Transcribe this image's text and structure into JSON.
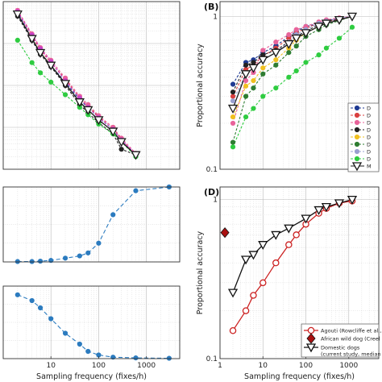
{
  "chart_data": [
    {
      "id": "A",
      "panel_label": "",
      "type": "line",
      "scale": {
        "x": "log",
        "y": "log"
      },
      "xlim": [
        1,
        5000
      ],
      "ylim": [
        0.0001,
        1
      ],
      "grid": true,
      "xlabel": "",
      "ylabel": "",
      "x": [
        2,
        4,
        6,
        10,
        20,
        40,
        60,
        100,
        200,
        300,
        600
      ],
      "series": [
        {
          "name": "",
          "color": "#1f3a93",
          "dash": "3,2",
          "marker": "circle",
          "values": [
            0.55,
            0.13,
            0.06,
            0.03,
            0.012,
            0.0045,
            0.003,
            0.0017,
            0.0009,
            0.0005,
            0.00022
          ]
        },
        {
          "name": "",
          "color": "#d94040",
          "dash": "3,2",
          "marker": "circle",
          "values": [
            0.6,
            0.15,
            0.07,
            0.035,
            0.014,
            0.005,
            0.0032,
            0.0018,
            0.001,
            0.0005,
            0.00022
          ]
        },
        {
          "name": "",
          "color": "#e8639a",
          "dash": "3,2",
          "marker": "circle",
          "values": [
            0.62,
            0.17,
            0.08,
            0.04,
            0.015,
            0.0055,
            0.0035,
            0.0019,
            0.001,
            0.00055,
            0.00024
          ]
        },
        {
          "name": "",
          "color": "#222222",
          "dash": "3,2",
          "marker": "circle",
          "values": [
            0.45,
            0.12,
            0.055,
            0.028,
            0.01,
            0.0035,
            0.0022,
            0.0013,
            0.0007,
            0.0003,
            0.00022
          ]
        },
        {
          "name": "",
          "color": "#2ecc40",
          "dash": "3,2",
          "marker": "circle",
          "values": [
            0.12,
            0.035,
            0.02,
            0.012,
            0.006,
            0.003,
            0.002,
            0.0012,
            0.0007,
            0.00045,
            0.0002
          ]
        },
        {
          "name": "",
          "color": "#c840c8",
          "dash": "3,2",
          "marker": "circle",
          "values": [
            0.58,
            0.16,
            0.075,
            0.037,
            0.013,
            0.005,
            0.003,
            0.0017,
            0.0009,
            0.0005,
            0.00023
          ]
        },
        {
          "name": "",
          "color": "#1a1a1a",
          "dash": "none",
          "marker": "triangle-down",
          "values": [
            0.5,
            0.13,
            0.06,
            0.03,
            0.011,
            0.004,
            0.0026,
            0.0015,
            0.0008,
            0.00045,
            0.00022
          ]
        }
      ]
    },
    {
      "id": "B",
      "panel_label": "(B)",
      "type": "line",
      "scale": {
        "x": "log",
        "y": "log"
      },
      "xlim": [
        1,
        5000
      ],
      "ylim": [
        0.1,
        1.25
      ],
      "grid": true,
      "xlabel": "",
      "ylabel": "Proportional accuracy",
      "yticks": [
        {
          "value": 1,
          "label": "1"
        },
        {
          "value": 0.1,
          "label": "0.1"
        }
      ],
      "x": [
        2,
        4,
        6,
        10,
        20,
        40,
        60,
        100,
        200,
        300,
        600,
        1200
      ],
      "legend": {
        "placement": "right",
        "entries": [
          "D",
          "D",
          "D",
          "D",
          "D",
          "D",
          "D",
          "D",
          "M"
        ]
      },
      "series": [
        {
          "name": "D",
          "color": "#1f3a93",
          "dash": "3,2",
          "marker": "circle",
          "values": [
            0.36,
            0.5,
            0.52,
            0.58,
            0.64,
            0.74,
            0.8,
            0.86,
            0.9,
            0.94,
            0.97,
            1.0
          ]
        },
        {
          "name": "D",
          "color": "#d94040",
          "dash": "3,2",
          "marker": "circle",
          "values": [
            0.3,
            0.45,
            0.48,
            0.55,
            0.62,
            0.72,
            0.78,
            0.84,
            0.9,
            0.93,
            0.96,
            1.0
          ]
        },
        {
          "name": "D",
          "color": "#e8639a",
          "dash": "3,2",
          "marker": "circle",
          "values": [
            0.2,
            0.38,
            0.43,
            0.6,
            0.68,
            0.76,
            0.82,
            0.86,
            0.92,
            0.95,
            0.98,
            1.0
          ]
        },
        {
          "name": "D",
          "color": "#222222",
          "dash": "3,2",
          "marker": "circle",
          "values": [
            0.32,
            0.48,
            0.5,
            0.56,
            0.6,
            0.68,
            0.74,
            0.8,
            0.88,
            0.92,
            0.96,
            1.0
          ]
        },
        {
          "name": "D",
          "color": "#f0c020",
          "dash": "3,2",
          "marker": "circle",
          "values": [
            0.22,
            0.35,
            0.38,
            0.46,
            0.52,
            0.62,
            0.7,
            0.78,
            0.86,
            0.9,
            0.95,
            1.0
          ]
        },
        {
          "name": "D",
          "color": "#2e7d32",
          "dash": "3,2",
          "marker": "circle",
          "values": [
            0.15,
            0.3,
            0.34,
            0.42,
            0.48,
            0.58,
            0.64,
            0.74,
            0.82,
            0.88,
            0.94,
            1.0
          ]
        },
        {
          "name": "D",
          "color": "#9aa0d0",
          "dash": "3,2",
          "marker": "circle",
          "values": [
            0.28,
            0.42,
            0.46,
            0.52,
            0.58,
            0.68,
            0.76,
            0.82,
            0.9,
            0.93,
            0.97,
            1.0
          ]
        },
        {
          "name": "D",
          "color": "#2ecc40",
          "dash": "3,2",
          "marker": "circle",
          "values": [
            0.14,
            0.22,
            0.25,
            0.3,
            0.34,
            0.4,
            0.44,
            0.5,
            0.56,
            0.62,
            0.72,
            0.85
          ]
        },
        {
          "name": "M",
          "color": "#1a1a1a",
          "dash": "none",
          "marker": "triangle-down",
          "values": [
            0.25,
            0.42,
            0.46,
            0.52,
            0.58,
            0.66,
            0.72,
            0.78,
            0.86,
            0.9,
            0.95,
            1.0
          ]
        }
      ]
    },
    {
      "id": "C1",
      "panel_label": "",
      "type": "line",
      "scale": {
        "x": "log",
        "y": "linear"
      },
      "xlim": [
        1,
        5000
      ],
      "ylim": [
        0,
        1
      ],
      "grid": true,
      "xlabel": "",
      "ylabel": "",
      "x": [
        2,
        4,
        6,
        10,
        20,
        40,
        60,
        100,
        200,
        600,
        3000
      ],
      "series": [
        {
          "name": "",
          "color": "#2b7bbf",
          "dash": "5,3",
          "marker": "circle",
          "values": [
            0.005,
            0.005,
            0.01,
            0.02,
            0.05,
            0.08,
            0.12,
            0.25,
            0.63,
            0.95,
            1.0
          ]
        }
      ]
    },
    {
      "id": "C2",
      "panel_label": "",
      "type": "line",
      "scale": {
        "x": "log",
        "y": "linear"
      },
      "xlim": [
        1,
        5000
      ],
      "ylim": [
        0,
        1
      ],
      "grid": true,
      "xlabel": "Sampling frequency (fixes/h)",
      "ylabel": "",
      "xticks": [
        {
          "value": 10,
          "label": "10"
        },
        {
          "value": 100,
          "label": "100"
        },
        {
          "value": 1000,
          "label": "1000"
        }
      ],
      "x": [
        2,
        4,
        6,
        10,
        20,
        40,
        60,
        100,
        200,
        600,
        3000
      ],
      "series": [
        {
          "name": "",
          "color": "#2b7bbf",
          "dash": "5,3",
          "marker": "circle",
          "values": [
            0.88,
            0.8,
            0.7,
            0.55,
            0.35,
            0.2,
            0.1,
            0.05,
            0.02,
            0.01,
            0.005
          ]
        }
      ]
    },
    {
      "id": "D",
      "panel_label": "(D)",
      "type": "line",
      "scale": {
        "x": "log",
        "y": "log"
      },
      "xlim": [
        1,
        5000
      ],
      "ylim": [
        0.1,
        1.2
      ],
      "grid": true,
      "xlabel": "Sampling frequency (fixes/h)",
      "ylabel": "Proportional accuracy",
      "xticks": [
        {
          "value": 1,
          "label": "1"
        },
        {
          "value": 10,
          "label": "10"
        },
        {
          "value": 100,
          "label": "100"
        },
        {
          "value": 1000,
          "label": "1000"
        }
      ],
      "yticks": [
        {
          "value": 1,
          "label": "1"
        },
        {
          "value": 0.1,
          "label": "0.1"
        }
      ],
      "legend": {
        "placement": "bottom-right",
        "entries": [
          "Agouti (Rowcliffe et al.,",
          "African wild dog (Creel",
          "Domestic dogs",
          "(current study, median"
        ]
      },
      "series": [
        {
          "name": "Agouti (Rowcliffe et al.,",
          "color": "#cc2222",
          "dash": "none",
          "marker": "open-circle",
          "x": [
            2,
            4,
            6,
            10,
            20,
            40,
            60,
            100,
            200,
            300,
            600,
            1200
          ],
          "values": [
            0.15,
            0.2,
            0.25,
            0.3,
            0.4,
            0.52,
            0.6,
            0.7,
            0.82,
            0.88,
            0.95,
            0.98
          ]
        },
        {
          "name": "African wild dog (Creel",
          "color": "#aa1111",
          "dash": "none",
          "marker": "diamond",
          "x": [
            1.3
          ],
          "values": [
            0.62
          ]
        },
        {
          "name": "Domestic dogs",
          "color": "#111111",
          "dash": "none",
          "marker": "triangle-down",
          "x": [
            2,
            4,
            6,
            10,
            20,
            40,
            100,
            200,
            300,
            600,
            1200
          ],
          "values": [
            0.26,
            0.42,
            0.45,
            0.52,
            0.6,
            0.66,
            0.76,
            0.86,
            0.9,
            0.95,
            1.0
          ]
        }
      ]
    }
  ]
}
